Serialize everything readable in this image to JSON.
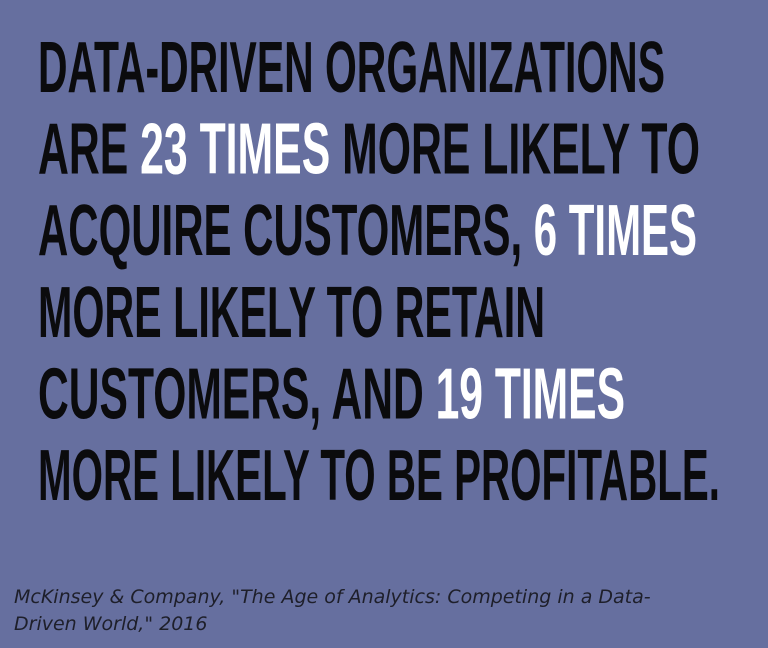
{
  "quote": {
    "lines": [
      [
        {
          "text": "DATA-DRIVEN ORGANIZATIONS",
          "color": "#0b0b0d"
        }
      ],
      [
        {
          "text": "ARE ",
          "color": "#0b0b0d"
        },
        {
          "text": "23 TIMES",
          "color": "#ffffff"
        },
        {
          "text": " MORE LIKELY TO",
          "color": "#0b0b0d"
        }
      ],
      [
        {
          "text": "ACQUIRE CUSTOMERS, ",
          "color": "#0b0b0d"
        },
        {
          "text": "6 TIMES",
          "color": "#ffffff"
        }
      ],
      [
        {
          "text": "MORE LIKELY TO RETAIN",
          "color": "#0b0b0d"
        }
      ],
      [
        {
          "text": "CUSTOMERS, AND ",
          "color": "#0b0b0d"
        },
        {
          "text": "19 TIMES",
          "color": "#ffffff"
        }
      ],
      [
        {
          "text": "MORE LIKELY TO BE PROFITABLE.",
          "color": "#0b0b0d"
        }
      ]
    ]
  },
  "citation": {
    "lines": [
      "McKinsey & Company, \"The Age of Analytics: Competing in a Data-",
      "Driven World,\" 2016"
    ]
  }
}
